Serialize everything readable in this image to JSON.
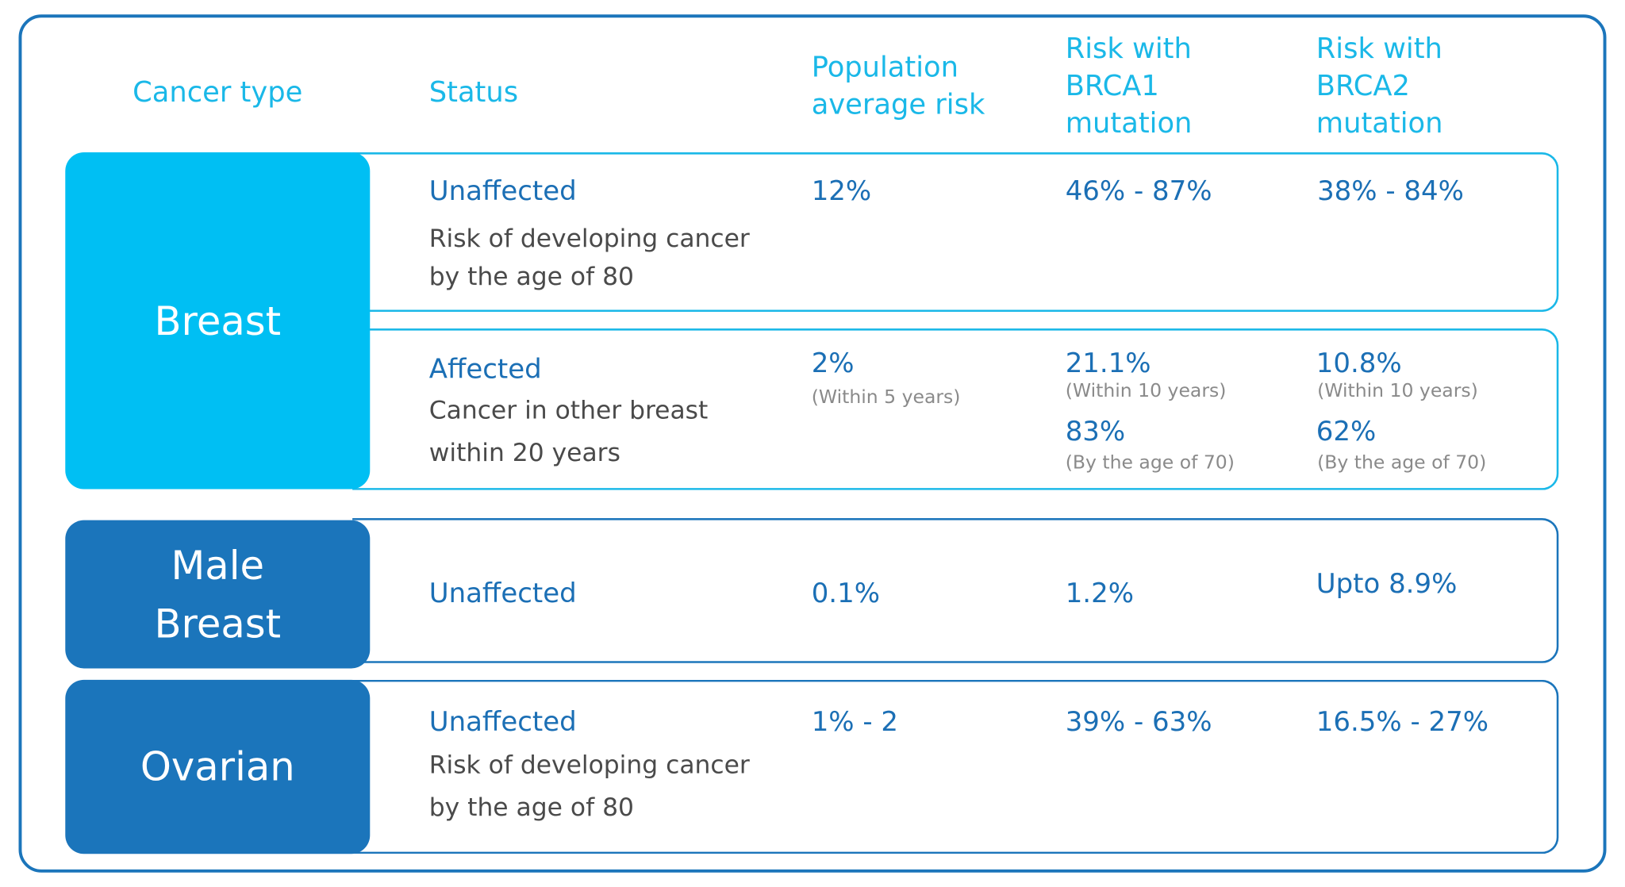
{
  "table": {
    "header": [
      "Cancer type",
      "Status",
      "Population average risk",
      "Risk with BRCA1 mutation",
      "Risk with BRCA2 mutation"
    ],
    "groups": [
      {
        "cancer_type": "Breast",
        "rows": [
          {
            "status": "Unaffected",
            "status_note": "Risk of developing cancer by the age of 80",
            "population": [
              {
                "value": "12%"
              }
            ],
            "brca1": [
              {
                "value": "46% - 87%"
              }
            ],
            "brca2": [
              {
                "value": "38% - 84%"
              }
            ]
          },
          {
            "status": "Affected",
            "status_note": "Cancer in other breast within 20 years",
            "population": [
              {
                "value": "2%",
                "note": "(Within 5 years)"
              }
            ],
            "brca1": [
              {
                "value": "21.1%",
                "note": "(Within 10 years)"
              },
              {
                "value": "83%",
                "note": "(By the age of 70)"
              }
            ],
            "brca2": [
              {
                "value": "10.8%",
                "note": "(Within 10 years)"
              },
              {
                "value": "62%",
                "note": "(By the age of 70)"
              }
            ]
          }
        ]
      },
      {
        "cancer_type": "Male Breast",
        "rows": [
          {
            "status": "Unaffected",
            "population": [
              {
                "value": "0.1%"
              }
            ],
            "brca1": [
              {
                "value": "1.2%"
              }
            ],
            "brca2": [
              {
                "value": "Upto 8.9%"
              }
            ]
          }
        ]
      },
      {
        "cancer_type": "Ovarian",
        "rows": [
          {
            "status": "Unaffected",
            "status_note": "Risk of developing cancer by the age of 80",
            "population": [
              {
                "value": "1% - 2"
              }
            ],
            "brca1": [
              {
                "value": "39% - 63%"
              }
            ],
            "brca2": [
              {
                "value": "16.5% - 27%"
              }
            ]
          }
        ]
      }
    ]
  }
}
